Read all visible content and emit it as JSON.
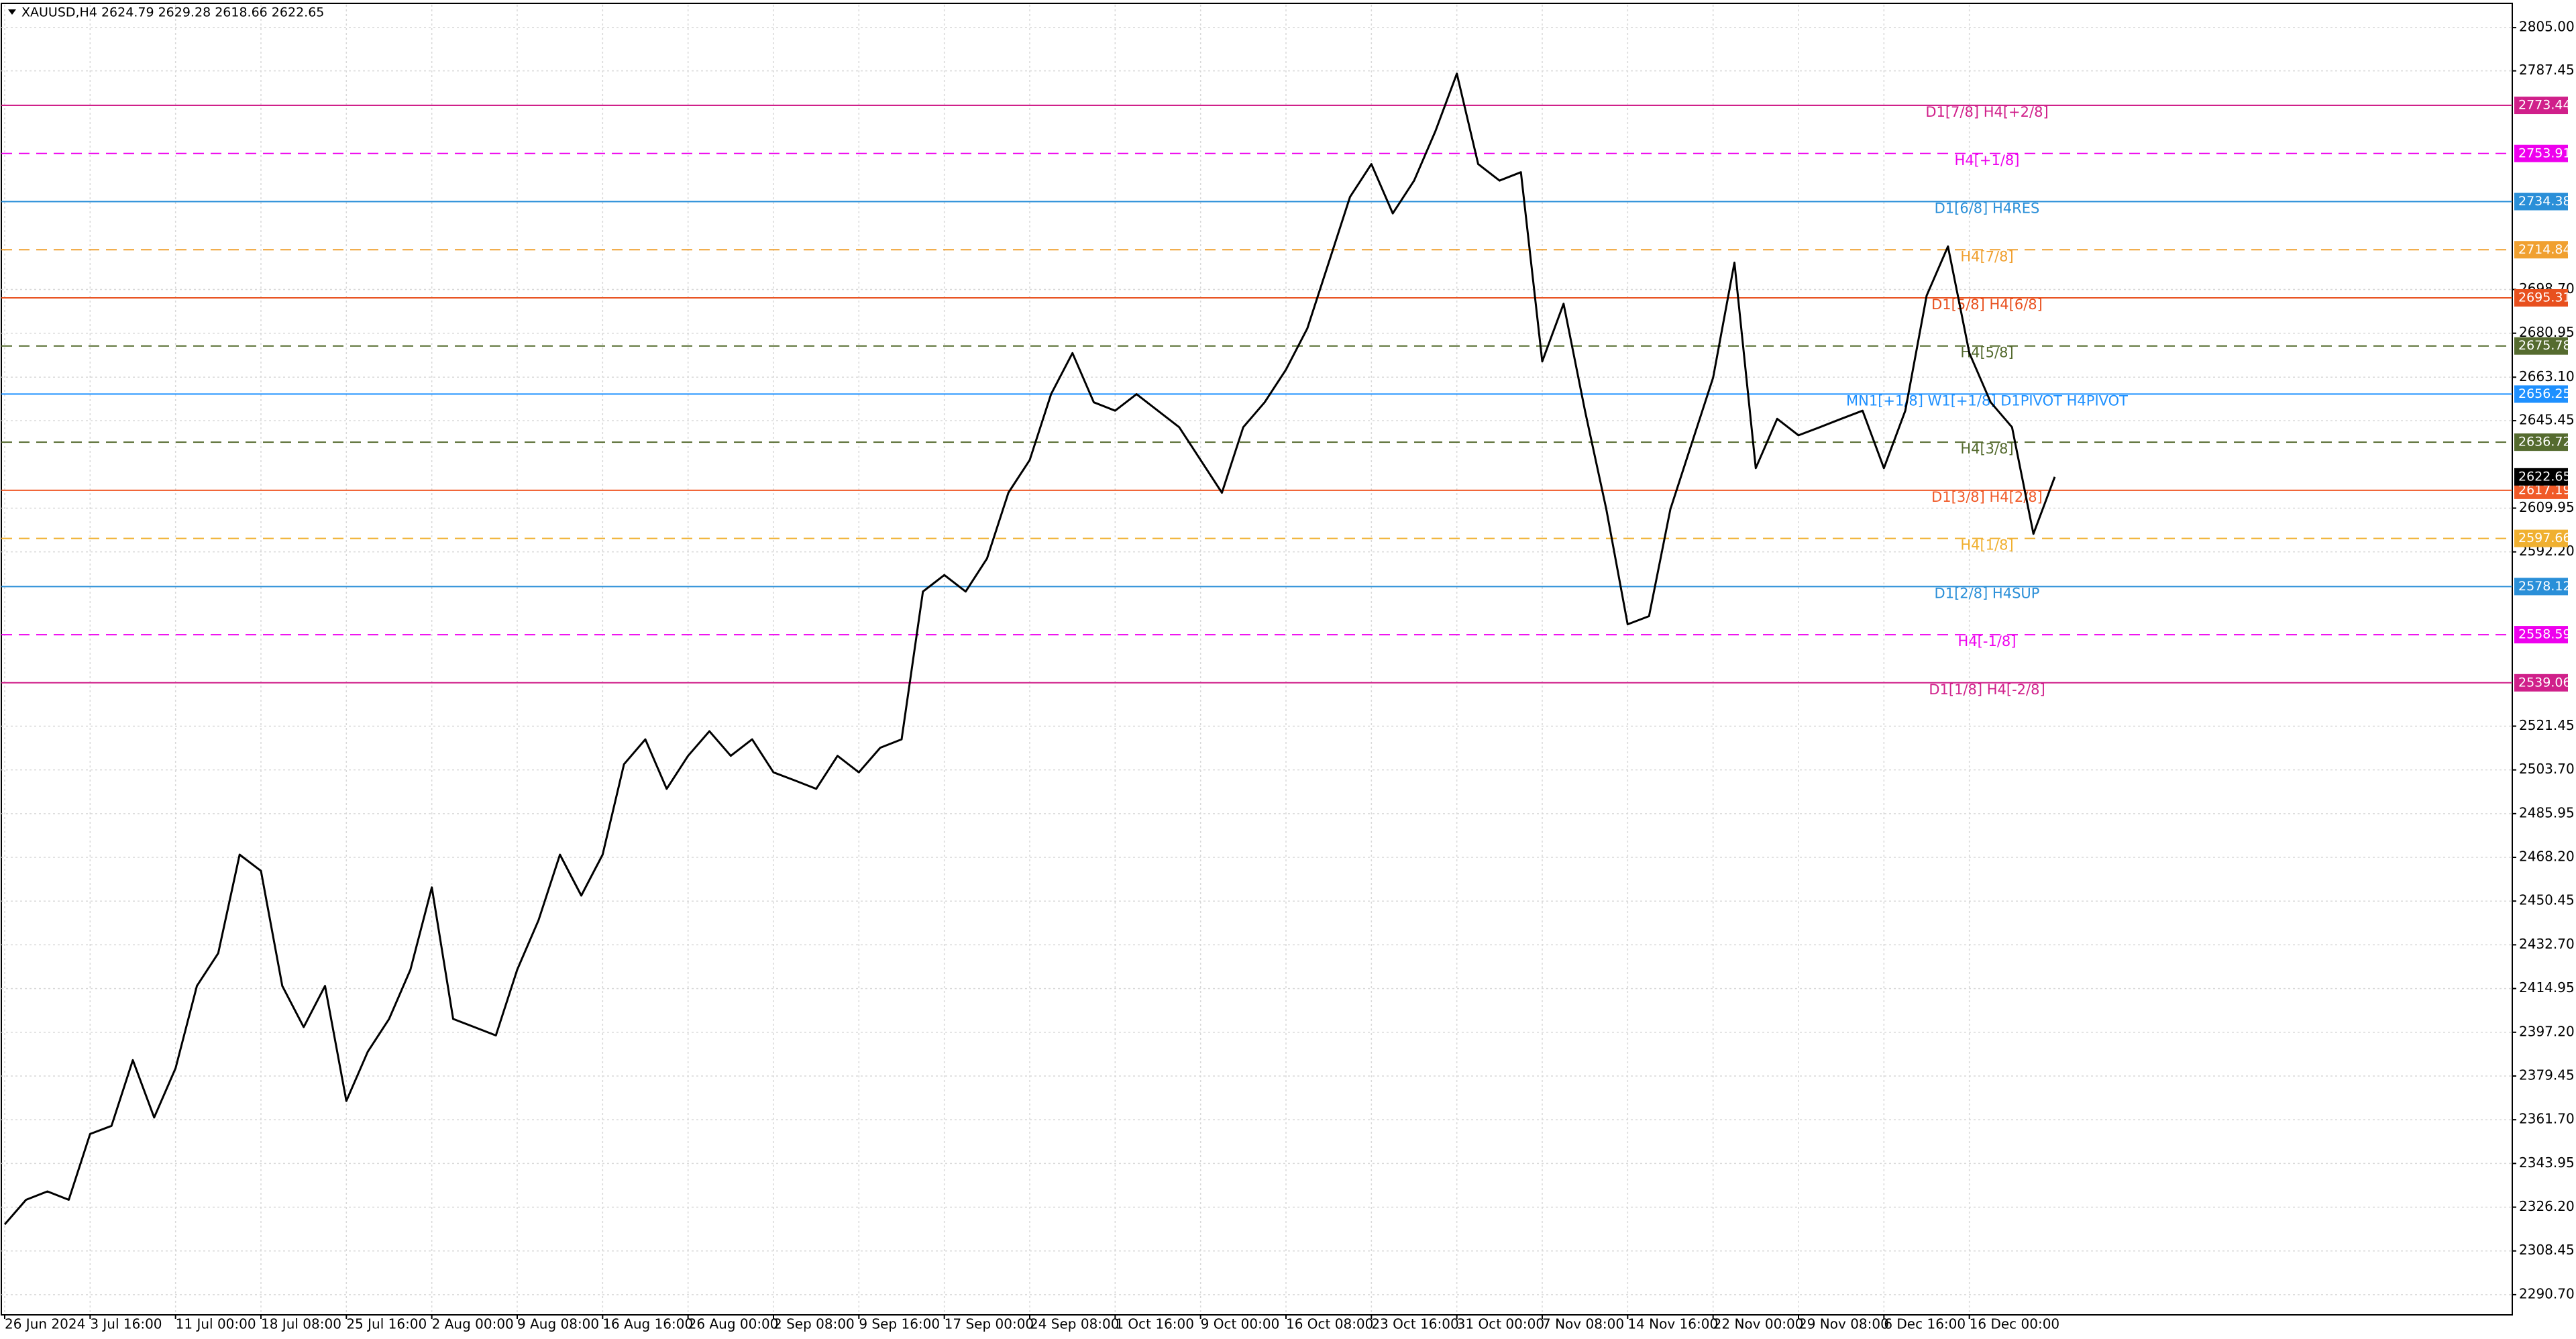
{
  "chart_data": {
    "type": "line",
    "title": "XAUUSD,H4  2624.79 2629.28 2618.66 2622.65",
    "x": [
      "26 Jun 2024",
      null,
      null,
      null,
      "3 Jul 16:00",
      null,
      null,
      null,
      "11 Jul 00:00",
      null,
      null,
      null,
      "18 Jul 08:00",
      null,
      null,
      null,
      "25 Jul 16:00",
      null,
      null,
      null,
      "2 Aug 00:00",
      null,
      null,
      null,
      "9 Aug 08:00",
      null,
      null,
      null,
      "16 Aug 16:00",
      null,
      null,
      null,
      "26 Aug 00:00",
      null,
      null,
      null,
      "2 Sep 08:00",
      null,
      null,
      null,
      "9 Sep 16:00",
      null,
      null,
      null,
      "17 Sep 00:00",
      null,
      null,
      null,
      "24 Sep 08:00",
      null,
      null,
      null,
      "1 Oct 16:00",
      null,
      null,
      null,
      "9 Oct 00:00",
      null,
      null,
      null,
      "16 Oct 08:00",
      null,
      null,
      null,
      "23 Oct 16:00",
      null,
      null,
      null,
      "31 Oct 00:00",
      null,
      null,
      null,
      "7 Nov 08:00",
      null,
      null,
      null,
      "14 Nov 16:00",
      null,
      null,
      null,
      "22 Nov 00:00",
      null,
      null,
      null,
      "29 Nov 08:00",
      null,
      null,
      null,
      "6 Dec 16:00",
      null,
      null,
      null,
      "16 Dec 00:00",
      null,
      null,
      null,
      null
    ],
    "series": [
      {
        "color": "#000000",
        "values": [
          2319.2,
          2329.2,
          2332.6,
          2329.2,
          2355.9,
          2359.2,
          2385.9,
          2362.6,
          2382.6,
          2416.0,
          2429.3,
          2469.3,
          2462.7,
          2416.0,
          2399.3,
          2416.0,
          2369.3,
          2389.3,
          2402.6,
          2422.6,
          2456.0,
          2402.6,
          2399.3,
          2395.9,
          2422.6,
          2442.7,
          2469.3,
          2452.7,
          2469.3,
          2506.0,
          2516.1,
          2496.0,
          2509.4,
          2519.4,
          2509.4,
          2516.1,
          2502.7,
          2499.4,
          2496.0,
          2509.4,
          2502.7,
          2512.7,
          2516.1,
          2576.1,
          2582.8,
          2576.1,
          2589.5,
          2616.2,
          2629.5,
          2656.2,
          2672.9,
          2652.9,
          2649.5,
          2656.2,
          2649.5,
          2642.8,
          2629.5,
          2616.2,
          2642.8,
          2652.9,
          2666.2,
          2682.9,
          2709.6,
          2736.3,
          2749.6,
          2729.6,
          2742.9,
          2763.0,
          2786.3,
          2749.6,
          2742.9,
          2746.3,
          2669.5,
          2692.9,
          2649.5,
          2609.5,
          2562.8,
          2566.1,
          2609.5,
          2636.2,
          2662.9,
          2709.6,
          2626.2,
          2646.2,
          2639.5,
          2642.8,
          2646.2,
          2649.5,
          2626.2,
          2649.5,
          2696.2,
          2716.2,
          2672.9,
          2652.9,
          2642.8,
          2599.5,
          2622.65
        ]
      }
    ],
    "ylim": [
      2282.5,
      2814.3
    ],
    "yticks": [
      {
        "value": 2805,
        "label": "2805.00"
      },
      {
        "value": 2787.45,
        "label": "2787.45"
      },
      {
        "value": 2698.7,
        "label": "2698.70"
      },
      {
        "value": 2680.95,
        "label": "2680.95"
      },
      {
        "value": 2663.1,
        "label": "2663.10"
      },
      {
        "value": 2645.45,
        "label": "2645.45"
      },
      {
        "value": 2609.95,
        "label": "2609.95"
      },
      {
        "value": 2592.2,
        "label": "2592.20"
      },
      {
        "value": 2521.45,
        "label": "2521.45"
      },
      {
        "value": 2503.7,
        "label": "2503.70"
      },
      {
        "value": 2485.95,
        "label": "2485.95"
      },
      {
        "value": 2468.2,
        "label": "2468.20"
      },
      {
        "value": 2450.45,
        "label": "2450.45"
      },
      {
        "value": 2432.7,
        "label": "2432.70"
      },
      {
        "value": 2414.95,
        "label": "2414.95"
      },
      {
        "value": 2397.2,
        "label": "2397.20"
      },
      {
        "value": 2379.45,
        "label": "2379.45"
      },
      {
        "value": 2361.7,
        "label": "2361.70"
      },
      {
        "value": 2343.95,
        "label": "2343.95"
      },
      {
        "value": 2326.2,
        "label": "2326.20"
      },
      {
        "value": 2308.45,
        "label": "2308.45"
      },
      {
        "value": 2290.7,
        "label": "2290.70"
      }
    ],
    "grid": true,
    "levels": [
      {
        "name": "D1[7/8] H4[+2/8]",
        "value": 2773.44,
        "color": "#d0208a",
        "dashed": false
      },
      {
        "name": "H4[+1/8]",
        "value": 2753.91,
        "color": "#ee00ee",
        "dashed": true
      },
      {
        "name": "D1[6/8] H4RES",
        "value": 2734.38,
        "color": "#2a8fd8",
        "dashed": false
      },
      {
        "name": "H4[7/8]",
        "value": 2714.84,
        "color": "#f0a030",
        "dashed": true
      },
      {
        "name": "D1[5/8] H4[6/8]",
        "value": 2695.31,
        "color": "#e8501e",
        "dashed": false
      },
      {
        "name": "H4[5/8]",
        "value": 2675.78,
        "color": "#556b2f",
        "dashed": true
      },
      {
        "name": "MN1[+1/8] W1[+1/8] D1PIVOT H4PIVOT",
        "value": 2656.25,
        "color": "#1e90ff",
        "dashed": false
      },
      {
        "name": "H4[3/8]",
        "value": 2636.72,
        "color": "#556b2f",
        "dashed": true
      },
      {
        "name": "D1[3/8] H4[2/8]",
        "value": 2617.19,
        "color": "#f05a28",
        "dashed": false
      },
      {
        "name": "H4[1/8]",
        "value": 2597.66,
        "color": "#f0b030",
        "dashed": true
      },
      {
        "name": "D1[2/8] H4SUP",
        "value": 2578.12,
        "color": "#2a8fd8",
        "dashed": false
      },
      {
        "name": "H4[-1/8]",
        "value": 2558.59,
        "color": "#ee00ee",
        "dashed": true
      },
      {
        "name": "D1[1/8] H4[-2/8]",
        "value": 2539.06,
        "color": "#d0208a",
        "dashed": false
      }
    ]
  }
}
